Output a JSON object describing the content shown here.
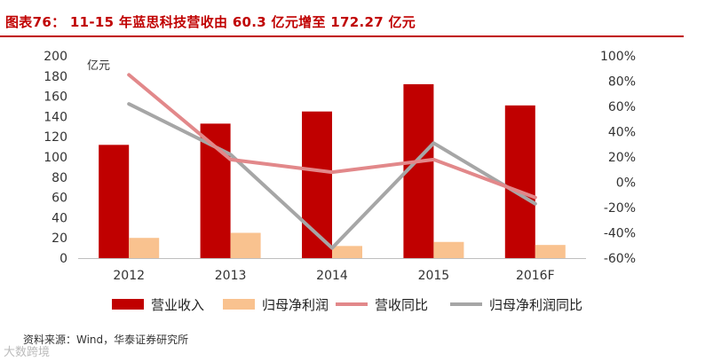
{
  "title": "图表76：  11-15 年蓝思科技营收由 60.3 亿元增至 172.27 亿元",
  "source": "资料来源：Wind，华泰证券研究所",
  "watermark": "大数跨境",
  "colors": {
    "revenue": "#c00000",
    "net_profit": "#f9c28f",
    "revenue_yoy": "#e2888a",
    "net_profit_yoy": "#a6a6a6",
    "title": "#c00000"
  },
  "chart_data": {
    "type": "bar",
    "categories": [
      "2012",
      "2013",
      "2014",
      "2015",
      "2016F"
    ],
    "left_axis": {
      "unit_label": "亿元",
      "range": [
        0,
        200
      ],
      "ticks": [
        0,
        20,
        40,
        60,
        80,
        100,
        120,
        140,
        160,
        180,
        200
      ]
    },
    "right_axis": {
      "range": [
        -60,
        100
      ],
      "ticks": [
        "-60%",
        "-40%",
        "-20%",
        "0%",
        "20%",
        "40%",
        "60%",
        "80%",
        "100%"
      ]
    },
    "series": [
      {
        "name": "营业收入",
        "type": "bar",
        "axis": "left",
        "values": [
          112,
          133,
          145,
          172,
          151
        ]
      },
      {
        "name": "归母净利润",
        "type": "bar",
        "axis": "left",
        "values": [
          20,
          25,
          12,
          16,
          13
        ]
      },
      {
        "name": "营收同比",
        "type": "line",
        "axis": "right",
        "values": [
          85,
          18,
          8,
          18,
          -12
        ]
      },
      {
        "name": "归母净利润同比",
        "type": "line",
        "axis": "right",
        "values": [
          62,
          22,
          -52,
          31,
          -17
        ]
      }
    ],
    "legend_position": "bottom"
  }
}
